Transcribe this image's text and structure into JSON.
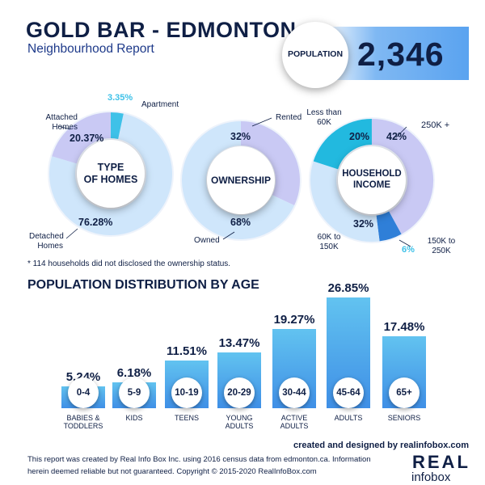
{
  "header": {
    "title": "GOLD BAR - EDMONTON",
    "subtitle": "Neighbourhood Report",
    "population_label": "POPULATION",
    "population_value": "2,346"
  },
  "colors": {
    "navy": "#0f1f45",
    "light_blue": "#cfe6fb",
    "lavender": "#c9c9f4",
    "cyan": "#3ec1e8",
    "teal": "#22b9df",
    "blue": "#2f7fd8",
    "bar_top": "#62c3f0",
    "bar_bottom": "#3f8fe6"
  },
  "chart_data": [
    {
      "type": "pie",
      "title": "TYPE OF HOMES",
      "slices": [
        {
          "label": "Detached Homes",
          "value": 76.28,
          "display": "76.28%",
          "color": "#cfe6fb"
        },
        {
          "label": "Attached Homes",
          "value": 20.37,
          "display": "20.37%",
          "color": "#c9c9f4"
        },
        {
          "label": "Apartment",
          "value": 3.35,
          "display": "3.35%",
          "color": "#3ec1e8"
        }
      ]
    },
    {
      "type": "pie",
      "title": "OWNERSHIP",
      "slices": [
        {
          "label": "Owned",
          "value": 68,
          "display": "68%",
          "color": "#cfe6fb"
        },
        {
          "label": "Rented",
          "value": 32,
          "display": "32%",
          "color": "#c9c9f4"
        }
      ]
    },
    {
      "type": "pie",
      "title": "HOUSEHOLD INCOME",
      "slices": [
        {
          "label": "250K +",
          "value": 42,
          "display": "42%",
          "color": "#c9c9f4"
        },
        {
          "label": "150K to 250K",
          "value": 6,
          "display": "6%",
          "color": "#2f7fd8"
        },
        {
          "label": "60K to 150K",
          "value": 32,
          "display": "32%",
          "color": "#cfe6fb"
        },
        {
          "label": "Less than 60K",
          "value": 20,
          "display": "20%",
          "color": "#22b9df"
        }
      ]
    },
    {
      "type": "bar",
      "title": "POPULATION DISTRIBUTION BY AGE",
      "categories": [
        "0-4",
        "5-9",
        "10-19",
        "20-29",
        "30-44",
        "45-64",
        "65+"
      ],
      "groups": [
        "BABIES & TODDLERS",
        "KIDS",
        "TEENS",
        "YOUNG ADULTS",
        "ACTIVE ADULTS",
        "ADULTS",
        "SENIORS"
      ],
      "values": [
        5.24,
        6.18,
        11.51,
        13.47,
        19.27,
        26.85,
        17.48
      ],
      "labels": [
        "5.24%",
        "6.18%",
        "11.51%",
        "13.47%",
        "19.27%",
        "26.85%",
        "17.48%"
      ]
    }
  ],
  "donut_text": {
    "homes": {
      "center_line1": "TYPE",
      "center_line2": "OF HOMES",
      "attached_l1": "Attached",
      "attached_l2": "Homes",
      "apartment": "Apartment",
      "detached_l1": "Detached",
      "detached_l2": "Homes"
    },
    "ownership": {
      "center": "OWNERSHIP",
      "rented": "Rented",
      "owned": "Owned"
    },
    "income": {
      "center_line1": "HOUSEHOLD",
      "center_line2": "INCOME",
      "lt60_l1": "Less than",
      "lt60_l2": "60K",
      "k250": "250K +",
      "k60_l1": "60K to",
      "k60_l2": "150K",
      "k150_l1": "150K to",
      "k150_l2": "250K"
    }
  },
  "note": "* 114 households did not disclosed the ownership status.",
  "age_groups_line2": [
    "TODDLERS",
    "",
    "",
    "ADULTS",
    "ADULTS",
    "",
    ""
  ],
  "age_groups_line1": [
    "BABIES &",
    "KIDS",
    "TEENS",
    "YOUNG",
    "ACTIVE",
    "ADULTS",
    "SENIORS"
  ],
  "footer": {
    "credit": "created and designed by realinfobox.com",
    "disclaimer_line1": "This report was created by Real Info Box Inc. using 2016 census data from edmonton.ca. Information",
    "disclaimer_line2": "herein deemed reliable but not guaranteed. Copyright © 2015-2020 RealInfoBox.com",
    "logo_line1": "REAL",
    "logo_line2": "infobox"
  }
}
